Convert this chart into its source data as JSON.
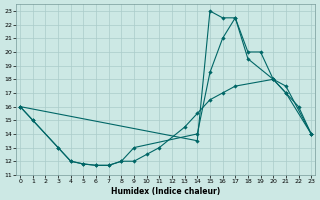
{
  "xlabel": "Humidex (Indice chaleur)",
  "bg_color": "#cce8e4",
  "grid_color": "#aaccca",
  "line_color": "#006666",
  "line1_x": [
    0,
    1,
    3,
    4,
    5,
    6,
    7,
    8,
    9,
    14,
    15,
    16,
    17,
    18,
    20,
    21,
    23
  ],
  "line1_y": [
    16,
    15,
    13,
    12,
    11.8,
    11.7,
    11.7,
    12,
    13,
    14,
    18.5,
    21.0,
    22.5,
    19.5,
    18,
    17,
    14
  ],
  "line2_x": [
    0,
    1,
    3,
    4,
    5,
    6,
    7,
    8,
    9,
    10,
    11,
    13,
    14,
    15,
    16,
    17,
    20,
    21,
    23
  ],
  "line2_y": [
    16,
    15,
    13,
    12,
    11.8,
    11.7,
    11.7,
    12,
    12,
    12.5,
    13,
    14.5,
    15.5,
    16.5,
    17,
    17.5,
    18,
    17.5,
    14
  ],
  "line3_x": [
    0,
    14,
    15,
    16,
    17,
    18,
    19,
    20,
    21,
    22,
    23
  ],
  "line3_y": [
    16,
    13.5,
    23.0,
    22.5,
    22.5,
    20,
    20,
    18,
    17,
    16,
    14
  ],
  "xlim": [
    -0.3,
    23.3
  ],
  "ylim": [
    11,
    23.5
  ],
  "yticks": [
    11,
    12,
    13,
    14,
    15,
    16,
    17,
    18,
    19,
    20,
    21,
    22,
    23
  ],
  "xticks": [
    0,
    1,
    2,
    3,
    4,
    5,
    6,
    7,
    8,
    9,
    10,
    11,
    12,
    13,
    14,
    15,
    16,
    17,
    18,
    19,
    20,
    21,
    22,
    23
  ]
}
